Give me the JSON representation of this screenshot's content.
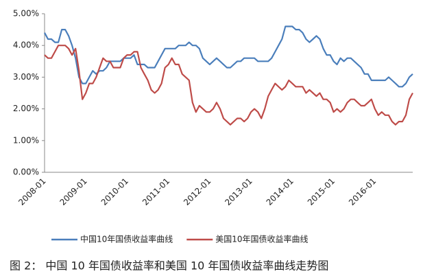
{
  "chart_data": {
    "type": "line",
    "caption": "图 2：   中国 10 年国债收益率和美国 10 年国债收益率曲线走势图",
    "categories": [
      "2008-01",
      null,
      null,
      null,
      null,
      null,
      null,
      null,
      null,
      null,
      null,
      null,
      "2009-01",
      null,
      null,
      null,
      null,
      null,
      null,
      null,
      null,
      null,
      null,
      null,
      "2010-01",
      null,
      null,
      null,
      null,
      null,
      null,
      null,
      null,
      null,
      null,
      null,
      "2011-01",
      null,
      null,
      null,
      null,
      null,
      null,
      null,
      null,
      null,
      null,
      null,
      "2012-01",
      null,
      null,
      null,
      null,
      null,
      null,
      null,
      null,
      null,
      null,
      null,
      "2013-01",
      null,
      null,
      null,
      null,
      null,
      null,
      null,
      null,
      null,
      null,
      null,
      "2014-01",
      null,
      null,
      null,
      null,
      null,
      null,
      null,
      null,
      null,
      null,
      null,
      "2015-01",
      null,
      null,
      null,
      null,
      null,
      null,
      null,
      null,
      null,
      null,
      null,
      "2016-01",
      null,
      null,
      null,
      null,
      null,
      null,
      null,
      null,
      null,
      null,
      null
    ],
    "series": [
      {
        "name": "中国10年国债收益率曲线",
        "color": "#4a7ebb",
        "values": [
          4.4,
          4.2,
          4.2,
          4.1,
          4.1,
          4.5,
          4.5,
          4.3,
          4.0,
          3.6,
          3.0,
          2.8,
          2.8,
          3.0,
          3.2,
          3.1,
          3.2,
          3.2,
          3.3,
          3.5,
          3.5,
          3.5,
          3.5,
          3.6,
          3.6,
          3.6,
          3.7,
          3.4,
          3.4,
          3.4,
          3.3,
          3.3,
          3.3,
          3.5,
          3.7,
          3.9,
          3.9,
          3.9,
          3.9,
          4.0,
          4.0,
          4.0,
          4.1,
          4.0,
          4.0,
          3.9,
          3.6,
          3.5,
          3.4,
          3.5,
          3.6,
          3.5,
          3.4,
          3.3,
          3.3,
          3.4,
          3.5,
          3.5,
          3.6,
          3.6,
          3.6,
          3.6,
          3.5,
          3.5,
          3.5,
          3.5,
          3.6,
          3.8,
          4.0,
          4.2,
          4.6,
          4.6,
          4.6,
          4.5,
          4.5,
          4.4,
          4.2,
          4.1,
          4.2,
          4.3,
          4.2,
          3.9,
          3.7,
          3.7,
          3.5,
          3.4,
          3.6,
          3.5,
          3.6,
          3.6,
          3.5,
          3.4,
          3.3,
          3.1,
          3.1,
          2.9,
          2.9,
          2.9,
          2.9,
          2.9,
          3.0,
          2.9,
          2.8,
          2.7,
          2.7,
          2.8,
          3.0,
          3.1
        ]
      },
      {
        "name": "美国10年国债收益率曲线",
        "color": "#be4b48",
        "values": [
          3.7,
          3.6,
          3.6,
          3.8,
          4.0,
          4.0,
          4.0,
          3.9,
          3.7,
          3.9,
          3.2,
          2.3,
          2.5,
          2.8,
          2.8,
          3.0,
          3.3,
          3.6,
          3.5,
          3.5,
          3.3,
          3.3,
          3.3,
          3.6,
          3.7,
          3.7,
          3.8,
          3.8,
          3.3,
          3.1,
          2.9,
          2.6,
          2.5,
          2.6,
          2.8,
          3.3,
          3.4,
          3.6,
          3.4,
          3.4,
          3.1,
          3.0,
          2.9,
          2.2,
          1.9,
          2.1,
          2.0,
          1.9,
          1.9,
          2.0,
          2.2,
          2.0,
          1.7,
          1.6,
          1.5,
          1.6,
          1.7,
          1.7,
          1.6,
          1.7,
          1.9,
          2.0,
          1.9,
          1.7,
          2.0,
          2.4,
          2.6,
          2.8,
          2.7,
          2.6,
          2.7,
          2.9,
          2.8,
          2.7,
          2.7,
          2.7,
          2.5,
          2.6,
          2.5,
          2.4,
          2.5,
          2.3,
          2.3,
          2.2,
          1.9,
          2.0,
          1.9,
          2.0,
          2.2,
          2.3,
          2.3,
          2.2,
          2.1,
          2.1,
          2.2,
          2.3,
          2.0,
          1.8,
          1.9,
          1.8,
          1.8,
          1.6,
          1.5,
          1.6,
          1.6,
          1.8,
          2.3,
          2.5
        ]
      }
    ],
    "ylim": [
      0,
      5
    ],
    "yticks": [
      {
        "value": 0,
        "label": "0.00%"
      },
      {
        "value": 1,
        "label": "1.00%"
      },
      {
        "value": 2,
        "label": "2.00%"
      },
      {
        "value": 3,
        "label": "3.00%"
      },
      {
        "value": 4,
        "label": "4.00%"
      },
      {
        "value": 5,
        "label": "5.00%"
      }
    ],
    "legend": "bottom"
  }
}
